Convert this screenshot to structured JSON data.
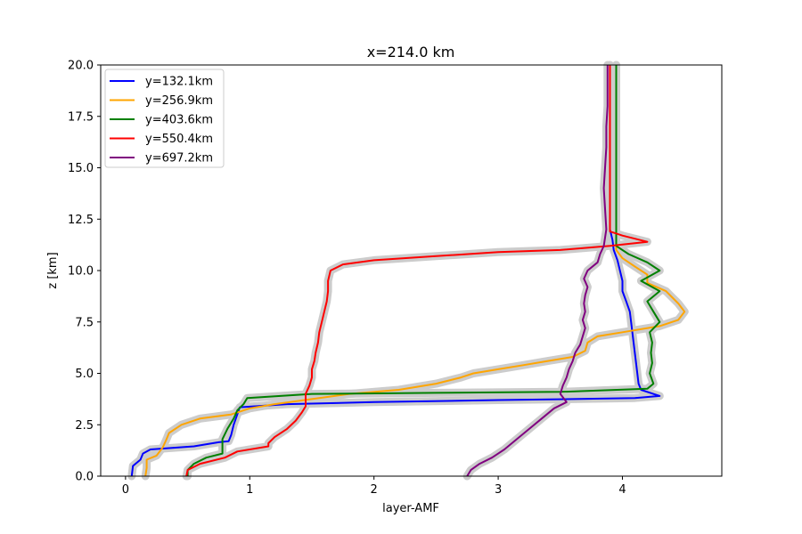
{
  "chart_data": {
    "type": "line",
    "title": "x=214.0 km",
    "xlabel": "layer-AMF",
    "ylabel": "z [km]",
    "xlim": [
      -0.2,
      4.8
    ],
    "ylim": [
      0,
      20
    ],
    "xticks": [
      "0",
      "1",
      "2",
      "3",
      "4"
    ],
    "xtick_values": [
      0,
      1,
      2,
      3,
      4
    ],
    "yticks": [
      "0.0",
      "2.5",
      "5.0",
      "7.5",
      "10.0",
      "12.5",
      "15.0",
      "17.5",
      "20.0"
    ],
    "ytick_values": [
      0,
      2.5,
      5,
      7.5,
      10,
      12.5,
      15,
      17.5,
      20
    ],
    "grid": false,
    "legend_position": "top-left",
    "band_color": "#cccccc",
    "series": [
      {
        "name": "y=132.1km",
        "color": "#0000ff",
        "points": [
          [
            0.05,
            0.0
          ],
          [
            0.06,
            0.5
          ],
          [
            0.12,
            0.8
          ],
          [
            0.14,
            1.1
          ],
          [
            0.2,
            1.3
          ],
          [
            0.55,
            1.45
          ],
          [
            0.75,
            1.65
          ],
          [
            0.83,
            1.7
          ],
          [
            0.85,
            2.0
          ],
          [
            0.87,
            2.5
          ],
          [
            0.9,
            3.0
          ],
          [
            0.92,
            3.35
          ],
          [
            1.3,
            3.5
          ],
          [
            2.0,
            3.6
          ],
          [
            3.0,
            3.7
          ],
          [
            3.6,
            3.75
          ],
          [
            4.1,
            3.8
          ],
          [
            4.3,
            3.9
          ],
          [
            4.15,
            4.2
          ],
          [
            4.13,
            4.5
          ],
          [
            4.12,
            5.0
          ],
          [
            4.11,
            5.5
          ],
          [
            4.1,
            6.0
          ],
          [
            4.09,
            6.5
          ],
          [
            4.08,
            7.0
          ],
          [
            4.07,
            7.5
          ],
          [
            4.06,
            8.0
          ],
          [
            4.03,
            8.5
          ],
          [
            4.0,
            9.0
          ],
          [
            4.0,
            9.5
          ],
          [
            3.98,
            10.0
          ],
          [
            3.96,
            10.5
          ],
          [
            3.93,
            11.0
          ],
          [
            3.92,
            11.5
          ],
          [
            3.9,
            12.0
          ],
          [
            3.9,
            13.0
          ],
          [
            3.9,
            14.0
          ],
          [
            3.9,
            15.0
          ],
          [
            3.9,
            16.0
          ],
          [
            3.9,
            17.0
          ],
          [
            3.9,
            18.0
          ],
          [
            3.9,
            19.0
          ],
          [
            3.9,
            20.0
          ]
        ]
      },
      {
        "name": "y=256.9km",
        "color": "#ffa500",
        "points": [
          [
            0.16,
            0.0
          ],
          [
            0.17,
            0.4
          ],
          [
            0.17,
            0.8
          ],
          [
            0.25,
            1.0
          ],
          [
            0.3,
            1.4
          ],
          [
            0.33,
            1.8
          ],
          [
            0.35,
            2.1
          ],
          [
            0.45,
            2.5
          ],
          [
            0.6,
            2.8
          ],
          [
            0.85,
            3.0
          ],
          [
            1.0,
            3.3
          ],
          [
            1.2,
            3.5
          ],
          [
            1.5,
            3.75
          ],
          [
            1.8,
            4.0
          ],
          [
            2.2,
            4.2
          ],
          [
            2.5,
            4.5
          ],
          [
            2.7,
            4.8
          ],
          [
            2.8,
            5.0
          ],
          [
            3.0,
            5.2
          ],
          [
            3.2,
            5.4
          ],
          [
            3.4,
            5.6
          ],
          [
            3.6,
            5.8
          ],
          [
            3.7,
            6.1
          ],
          [
            3.72,
            6.5
          ],
          [
            3.8,
            6.8
          ],
          [
            4.0,
            7.0
          ],
          [
            4.3,
            7.3
          ],
          [
            4.45,
            7.6
          ],
          [
            4.5,
            8.0
          ],
          [
            4.45,
            8.4
          ],
          [
            4.4,
            8.7
          ],
          [
            4.35,
            9.0
          ],
          [
            4.2,
            9.4
          ],
          [
            4.2,
            9.8
          ],
          [
            4.1,
            10.2
          ],
          [
            4.0,
            10.6
          ],
          [
            3.95,
            11.0
          ],
          [
            3.95,
            11.6
          ],
          [
            3.95,
            12.5
          ],
          [
            3.95,
            14.0
          ],
          [
            3.95,
            15.5
          ],
          [
            3.95,
            17.0
          ],
          [
            3.95,
            18.5
          ],
          [
            3.95,
            20.0
          ]
        ]
      },
      {
        "name": "y=403.6km",
        "color": "#008000",
        "points": [
          [
            0.5,
            0.0
          ],
          [
            0.5,
            0.3
          ],
          [
            0.55,
            0.6
          ],
          [
            0.65,
            0.9
          ],
          [
            0.78,
            1.1
          ],
          [
            0.78,
            1.4
          ],
          [
            0.78,
            1.8
          ],
          [
            0.82,
            2.3
          ],
          [
            0.87,
            2.8
          ],
          [
            0.9,
            3.2
          ],
          [
            0.95,
            3.5
          ],
          [
            0.98,
            3.8
          ],
          [
            1.5,
            4.0
          ],
          [
            2.5,
            4.05
          ],
          [
            3.5,
            4.1
          ],
          [
            4.2,
            4.25
          ],
          [
            4.25,
            4.5
          ],
          [
            4.22,
            5.0
          ],
          [
            4.24,
            5.5
          ],
          [
            4.23,
            6.0
          ],
          [
            4.24,
            6.5
          ],
          [
            4.22,
            7.0
          ],
          [
            4.3,
            7.5
          ],
          [
            4.25,
            8.0
          ],
          [
            4.2,
            8.5
          ],
          [
            4.3,
            9.0
          ],
          [
            4.15,
            9.5
          ],
          [
            4.3,
            10.0
          ],
          [
            4.2,
            10.4
          ],
          [
            4.05,
            10.8
          ],
          [
            3.95,
            11.2
          ],
          [
            3.95,
            12.0
          ],
          [
            3.95,
            14.0
          ],
          [
            3.95,
            16.0
          ],
          [
            3.95,
            18.0
          ],
          [
            3.95,
            20.0
          ]
        ]
      },
      {
        "name": "y=550.4km",
        "color": "#ff0000",
        "points": [
          [
            0.49,
            0.0
          ],
          [
            0.5,
            0.3
          ],
          [
            0.6,
            0.6
          ],
          [
            0.8,
            0.9
          ],
          [
            0.9,
            1.2
          ],
          [
            1.15,
            1.45
          ],
          [
            1.15,
            1.6
          ],
          [
            1.2,
            1.9
          ],
          [
            1.3,
            2.3
          ],
          [
            1.37,
            2.7
          ],
          [
            1.42,
            3.1
          ],
          [
            1.45,
            3.4
          ],
          [
            1.45,
            3.7
          ],
          [
            1.45,
            4.0
          ],
          [
            1.48,
            4.4
          ],
          [
            1.5,
            4.8
          ],
          [
            1.5,
            5.2
          ],
          [
            1.52,
            5.6
          ],
          [
            1.53,
            6.0
          ],
          [
            1.55,
            6.5
          ],
          [
            1.56,
            7.0
          ],
          [
            1.58,
            7.5
          ],
          [
            1.6,
            8.0
          ],
          [
            1.62,
            8.5
          ],
          [
            1.63,
            9.0
          ],
          [
            1.63,
            9.5
          ],
          [
            1.65,
            10.0
          ],
          [
            1.75,
            10.3
          ],
          [
            2.0,
            10.5
          ],
          [
            2.5,
            10.7
          ],
          [
            3.0,
            10.9
          ],
          [
            3.5,
            11.0
          ],
          [
            3.9,
            11.2
          ],
          [
            4.2,
            11.4
          ],
          [
            4.0,
            11.7
          ],
          [
            3.9,
            11.9
          ],
          [
            3.9,
            12.5
          ],
          [
            3.9,
            14.0
          ],
          [
            3.9,
            15.5
          ],
          [
            3.9,
            17.0
          ],
          [
            3.9,
            18.5
          ],
          [
            3.9,
            20.0
          ]
        ]
      },
      {
        "name": "y=697.2km",
        "color": "#800080",
        "points": [
          [
            2.75,
            0.0
          ],
          [
            2.78,
            0.3
          ],
          [
            2.85,
            0.6
          ],
          [
            2.95,
            0.9
          ],
          [
            3.05,
            1.3
          ],
          [
            3.15,
            1.8
          ],
          [
            3.25,
            2.3
          ],
          [
            3.35,
            2.8
          ],
          [
            3.45,
            3.3
          ],
          [
            3.55,
            3.6
          ],
          [
            3.5,
            4.0
          ],
          [
            3.52,
            4.4
          ],
          [
            3.55,
            4.8
          ],
          [
            3.57,
            5.2
          ],
          [
            3.6,
            5.6
          ],
          [
            3.62,
            6.0
          ],
          [
            3.66,
            6.4
          ],
          [
            3.68,
            6.8
          ],
          [
            3.7,
            7.2
          ],
          [
            3.68,
            7.6
          ],
          [
            3.7,
            8.0
          ],
          [
            3.69,
            8.4
          ],
          [
            3.7,
            8.8
          ],
          [
            3.72,
            9.2
          ],
          [
            3.69,
            9.6
          ],
          [
            3.72,
            10.0
          ],
          [
            3.8,
            10.4
          ],
          [
            3.82,
            10.8
          ],
          [
            3.85,
            11.2
          ],
          [
            3.86,
            11.6
          ],
          [
            3.87,
            12.0
          ],
          [
            3.86,
            13.0
          ],
          [
            3.85,
            14.0
          ],
          [
            3.86,
            15.0
          ],
          [
            3.87,
            16.0
          ],
          [
            3.87,
            17.0
          ],
          [
            3.88,
            18.0
          ],
          [
            3.88,
            19.0
          ],
          [
            3.88,
            20.0
          ]
        ]
      }
    ]
  }
}
